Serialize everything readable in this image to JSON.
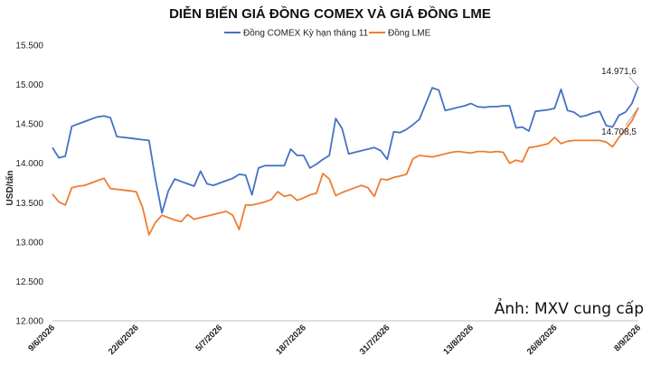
{
  "credit": "Ảnh: MXV cung cấp",
  "chart_data": {
    "type": "line",
    "title": "DIỄN BIẾN GIÁ ĐỒNG COMEX VÀ GIÁ ĐỒNG LME",
    "ylabel": "USD/tấn",
    "xlabel": "",
    "ylim": [
      12000,
      15500
    ],
    "yticks": [
      "12.000",
      "12.500",
      "13.000",
      "13.500",
      "14.000",
      "14.500",
      "15.000",
      "15.500"
    ],
    "ytick_values": [
      12000,
      12500,
      13000,
      13500,
      14000,
      14500,
      15000,
      15500
    ],
    "xtick_labels": [
      "9/6/2026",
      "22/6/2026",
      "5/7/2026",
      "18/7/2026",
      "31/7/2026",
      "13/8/2026",
      "26/8/2026",
      "8/9/2026"
    ],
    "xtick_days": [
      0,
      13,
      26,
      39,
      52,
      65,
      78,
      91
    ],
    "legend_position": "top-center",
    "grid": false,
    "series": [
      {
        "name": "Đồng COMEX Kỳ hạn tháng 11",
        "color": "#4472C4",
        "x_days": [
          0,
          1,
          2,
          3,
          4,
          5,
          6,
          7,
          8,
          9,
          10,
          11,
          12,
          13,
          14,
          15,
          16,
          17,
          18,
          19,
          20,
          21,
          22,
          23,
          24,
          25,
          26,
          27,
          28,
          29,
          30,
          31,
          32,
          33,
          34,
          35,
          36,
          37,
          38,
          39,
          40,
          41,
          42,
          43,
          44,
          45,
          46,
          47,
          48,
          49,
          50,
          51,
          52,
          53,
          54,
          55,
          56,
          57,
          58,
          59,
          60,
          61,
          62,
          63,
          64,
          65,
          66,
          67,
          68,
          69,
          70,
          71,
          72,
          73,
          74,
          75,
          76,
          77,
          78,
          79,
          80,
          81,
          82,
          83,
          84,
          85,
          86,
          87,
          88,
          89,
          90,
          91
        ],
        "values": [
          14200,
          14070,
          14090,
          14470,
          14500,
          14530,
          14560,
          14590,
          14600,
          14580,
          14340,
          14330,
          14320,
          14310,
          14300,
          14290,
          13800,
          13370,
          13650,
          13800,
          13770,
          13740,
          13710,
          13900,
          13740,
          13720,
          13750,
          13780,
          13810,
          13860,
          13850,
          13600,
          13940,
          13970,
          13970,
          13970,
          13970,
          14180,
          14100,
          14100,
          13940,
          13990,
          14050,
          14100,
          14570,
          14440,
          14120,
          14140,
          14160,
          14180,
          14200,
          14160,
          14050,
          14400,
          14390,
          14430,
          14490,
          14560,
          14760,
          14960,
          14930,
          14670,
          14690,
          14710,
          14730,
          14760,
          14720,
          14710,
          14720,
          14720,
          14730,
          14730,
          14450,
          14460,
          14410,
          14660,
          14670,
          14680,
          14700,
          14940,
          14670,
          14650,
          14590,
          14610,
          14640,
          14660,
          14480,
          14460,
          14610,
          14650,
          14760,
          14971.6
        ]
      },
      {
        "name": "Đồng LME",
        "color": "#ED7D31",
        "x_days": [
          0,
          1,
          2,
          3,
          4,
          5,
          6,
          7,
          8,
          9,
          10,
          11,
          12,
          13,
          14,
          15,
          16,
          17,
          18,
          19,
          20,
          21,
          22,
          23,
          24,
          25,
          26,
          27,
          28,
          29,
          30,
          31,
          32,
          33,
          34,
          35,
          36,
          37,
          38,
          39,
          40,
          41,
          42,
          43,
          44,
          45,
          46,
          47,
          48,
          49,
          50,
          51,
          52,
          53,
          54,
          55,
          56,
          57,
          58,
          59,
          60,
          61,
          62,
          63,
          64,
          65,
          66,
          67,
          68,
          69,
          70,
          71,
          72,
          73,
          74,
          75,
          76,
          77,
          78,
          79,
          80,
          81,
          82,
          83,
          84,
          85,
          86,
          87,
          88,
          89,
          90,
          91
        ],
        "values": [
          13610,
          13510,
          13470,
          13690,
          13710,
          13720,
          13750,
          13780,
          13810,
          13680,
          13670,
          13660,
          13650,
          13640,
          13440,
          13090,
          13250,
          13340,
          13310,
          13280,
          13260,
          13350,
          13290,
          13310,
          13330,
          13350,
          13370,
          13390,
          13340,
          13160,
          13470,
          13470,
          13490,
          13510,
          13540,
          13640,
          13580,
          13600,
          13530,
          13560,
          13600,
          13620,
          13870,
          13800,
          13590,
          13630,
          13660,
          13690,
          13720,
          13690,
          13580,
          13800,
          13790,
          13820,
          13840,
          13860,
          14060,
          14100,
          14090,
          14080,
          14100,
          14120,
          14140,
          14150,
          14140,
          14130,
          14150,
          14150,
          14140,
          14150,
          14140,
          14000,
          14040,
          14020,
          14200,
          14210,
          14230,
          14250,
          14330,
          14250,
          14280,
          14290,
          14290,
          14290,
          14290,
          14290,
          14270,
          14210,
          14330,
          14430,
          14540,
          14708.5
        ]
      }
    ],
    "annotations": [
      {
        "text": "14.971,6",
        "series": 0
      },
      {
        "text": "14.708,5",
        "series": 1
      }
    ]
  }
}
